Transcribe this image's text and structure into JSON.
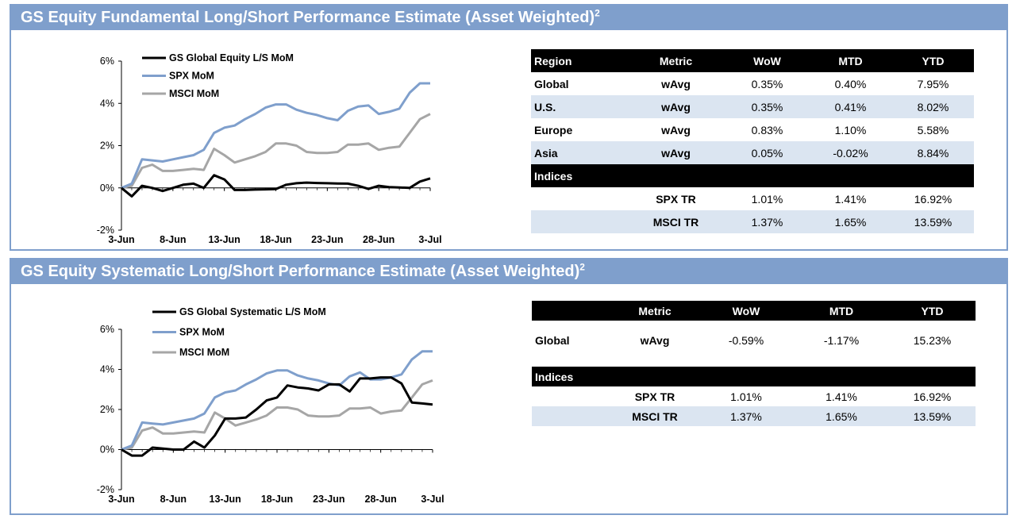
{
  "panels": [
    {
      "title": "GS Equity Fundamental Long/Short Performance Estimate (Asset Weighted)",
      "title_sup": "2",
      "chart_data": {
        "type": "line",
        "x_labels": [
          "3-Jun",
          "8-Jun",
          "13-Jun",
          "18-Jun",
          "23-Jun",
          "28-Jun",
          "3-Jul"
        ],
        "y_ticks": [
          "6%",
          "4%",
          "2%",
          "0%",
          "-2%"
        ],
        "ylim": [
          -2,
          6
        ],
        "x_range": [
          0,
          30
        ],
        "grid": false,
        "legend_position": "top-left",
        "series": [
          {
            "name": "GS Global Equity L/S MoM",
            "color": "#000000",
            "x": [
              0,
              1,
              2,
              3,
              4,
              5,
              6,
              7,
              8,
              9,
              10,
              11,
              12,
              13,
              14,
              15,
              16,
              17,
              18,
              19,
              20,
              21,
              22,
              23,
              24,
              25,
              26,
              27,
              28,
              29,
              30
            ],
            "y": [
              0.0,
              -0.4,
              0.1,
              0.0,
              -0.15,
              0.0,
              0.15,
              0.2,
              0.0,
              0.6,
              0.4,
              -0.1,
              -0.1,
              -0.08,
              -0.07,
              -0.06,
              0.15,
              0.22,
              0.25,
              0.23,
              0.22,
              0.21,
              0.2,
              0.1,
              -0.05,
              0.1,
              0.04,
              0.02,
              0.0,
              0.3,
              0.45
            ]
          },
          {
            "name": "SPX MoM",
            "color": "#7f9fcc",
            "x": [
              0,
              1,
              2,
              3,
              4,
              5,
              6,
              7,
              8,
              9,
              10,
              11,
              12,
              13,
              14,
              15,
              16,
              17,
              18,
              19,
              20,
              21,
              22,
              23,
              24,
              25,
              26,
              27,
              28,
              29,
              30
            ],
            "y": [
              0.0,
              0.2,
              1.35,
              1.3,
              1.25,
              1.35,
              1.45,
              1.55,
              1.8,
              2.6,
              2.85,
              2.95,
              3.25,
              3.5,
              3.8,
              3.95,
              3.95,
              3.7,
              3.55,
              3.45,
              3.3,
              3.2,
              3.65,
              3.85,
              3.9,
              3.5,
              3.6,
              3.75,
              4.5,
              4.95,
              4.95
            ]
          },
          {
            "name": "MSCI MoM",
            "color": "#a6a6a6",
            "x": [
              0,
              1,
              2,
              3,
              4,
              5,
              6,
              7,
              8,
              9,
              10,
              11,
              12,
              13,
              14,
              15,
              16,
              17,
              18,
              19,
              20,
              21,
              22,
              23,
              24,
              25,
              26,
              27,
              28,
              29,
              30
            ],
            "y": [
              0.0,
              0.1,
              0.95,
              1.1,
              0.8,
              0.8,
              0.85,
              0.9,
              0.85,
              1.85,
              1.55,
              1.2,
              1.35,
              1.5,
              1.7,
              2.1,
              2.1,
              2.0,
              1.7,
              1.65,
              1.65,
              1.7,
              2.05,
              2.05,
              2.1,
              1.8,
              1.9,
              1.95,
              2.6,
              3.25,
              3.5
            ]
          }
        ]
      },
      "table": {
        "columns": [
          "Region",
          "Metric",
          "WoW",
          "MTD",
          "YTD"
        ],
        "rows": [
          {
            "region": "Global",
            "metric": "wAvg",
            "wow": "0.35%",
            "mtd": "0.40%",
            "ytd": "7.95%"
          },
          {
            "region": "U.S.",
            "metric": "wAvg",
            "wow": "0.35%",
            "mtd": "0.41%",
            "ytd": "8.02%"
          },
          {
            "region": "Europe",
            "metric": "wAvg",
            "wow": "0.83%",
            "mtd": "1.10%",
            "ytd": "5.58%"
          },
          {
            "region": "Asia",
            "metric": "wAvg",
            "wow": "0.05%",
            "mtd": "-0.02%",
            "ytd": "8.84%"
          }
        ],
        "indices_label": "Indices",
        "indices": [
          {
            "name": "SPX TR",
            "wow": "1.01%",
            "mtd": "1.41%",
            "ytd": "16.92%"
          },
          {
            "name": "MSCI TR",
            "wow": "1.37%",
            "mtd": "1.65%",
            "ytd": "13.59%"
          }
        ]
      }
    },
    {
      "title": "GS Equity Systematic Long/Short Performance Estimate (Asset Weighted)",
      "title_sup": "2",
      "chart_data": {
        "type": "line",
        "x_labels": [
          "3-Jun",
          "8-Jun",
          "13-Jun",
          "18-Jun",
          "23-Jun",
          "28-Jun",
          "3-Jul"
        ],
        "y_ticks": [
          "6%",
          "4%",
          "2%",
          "0%",
          "-2%"
        ],
        "ylim": [
          -2,
          6
        ],
        "x_range": [
          0,
          30
        ],
        "grid": false,
        "legend_position": "top-left",
        "series": [
          {
            "name": "GS Global Systematic L/S MoM",
            "color": "#000000",
            "x": [
              0,
              1,
              2,
              3,
              4,
              5,
              6,
              7,
              8,
              9,
              10,
              11,
              12,
              13,
              14,
              15,
              16,
              17,
              18,
              19,
              20,
              21,
              22,
              23,
              24,
              25,
              26,
              27,
              28,
              29,
              30
            ],
            "y": [
              0.0,
              -0.3,
              -0.3,
              0.1,
              0.05,
              0.0,
              0.0,
              0.4,
              0.1,
              0.7,
              1.55,
              1.55,
              1.6,
              2.0,
              2.45,
              2.6,
              3.2,
              3.1,
              3.05,
              2.95,
              3.25,
              3.25,
              2.9,
              3.55,
              3.55,
              3.6,
              3.6,
              3.3,
              2.35,
              2.3,
              2.25
            ]
          },
          {
            "name": "SPX MoM",
            "color": "#7f9fcc",
            "x": [
              0,
              1,
              2,
              3,
              4,
              5,
              6,
              7,
              8,
              9,
              10,
              11,
              12,
              13,
              14,
              15,
              16,
              17,
              18,
              19,
              20,
              21,
              22,
              23,
              24,
              25,
              26,
              27,
              28,
              29,
              30
            ],
            "y": [
              0.0,
              0.2,
              1.35,
              1.3,
              1.25,
              1.35,
              1.45,
              1.55,
              1.8,
              2.6,
              2.85,
              2.95,
              3.25,
              3.5,
              3.8,
              3.95,
              3.95,
              3.7,
              3.55,
              3.45,
              3.3,
              3.2,
              3.65,
              3.85,
              3.5,
              3.5,
              3.6,
              3.75,
              4.5,
              4.9,
              4.9
            ]
          },
          {
            "name": "MSCI MoM",
            "color": "#a6a6a6",
            "x": [
              0,
              1,
              2,
              3,
              4,
              5,
              6,
              7,
              8,
              9,
              10,
              11,
              12,
              13,
              14,
              15,
              16,
              17,
              18,
              19,
              20,
              21,
              22,
              23,
              24,
              25,
              26,
              27,
              28,
              29,
              30
            ],
            "y": [
              0.0,
              0.1,
              0.95,
              1.1,
              0.8,
              0.8,
              0.85,
              0.9,
              0.85,
              1.85,
              1.55,
              1.2,
              1.35,
              1.5,
              1.7,
              2.1,
              2.1,
              2.0,
              1.7,
              1.65,
              1.65,
              1.7,
              2.05,
              2.05,
              2.1,
              1.8,
              1.9,
              1.95,
              2.6,
              3.25,
              3.45
            ]
          }
        ]
      },
      "table": {
        "columns": [
          "",
          "Metric",
          "WoW",
          "MTD",
          "YTD"
        ],
        "rows": [
          {
            "region": "Global",
            "metric": "wAvg",
            "wow": "-0.59%",
            "mtd": "-1.17%",
            "ytd": "15.23%"
          }
        ],
        "indices_label": "Indices",
        "indices": [
          {
            "name": "SPX TR",
            "wow": "1.01%",
            "mtd": "1.41%",
            "ytd": "16.92%"
          },
          {
            "name": "MSCI TR",
            "wow": "1.37%",
            "mtd": "1.65%",
            "ytd": "13.59%"
          }
        ]
      }
    }
  ]
}
